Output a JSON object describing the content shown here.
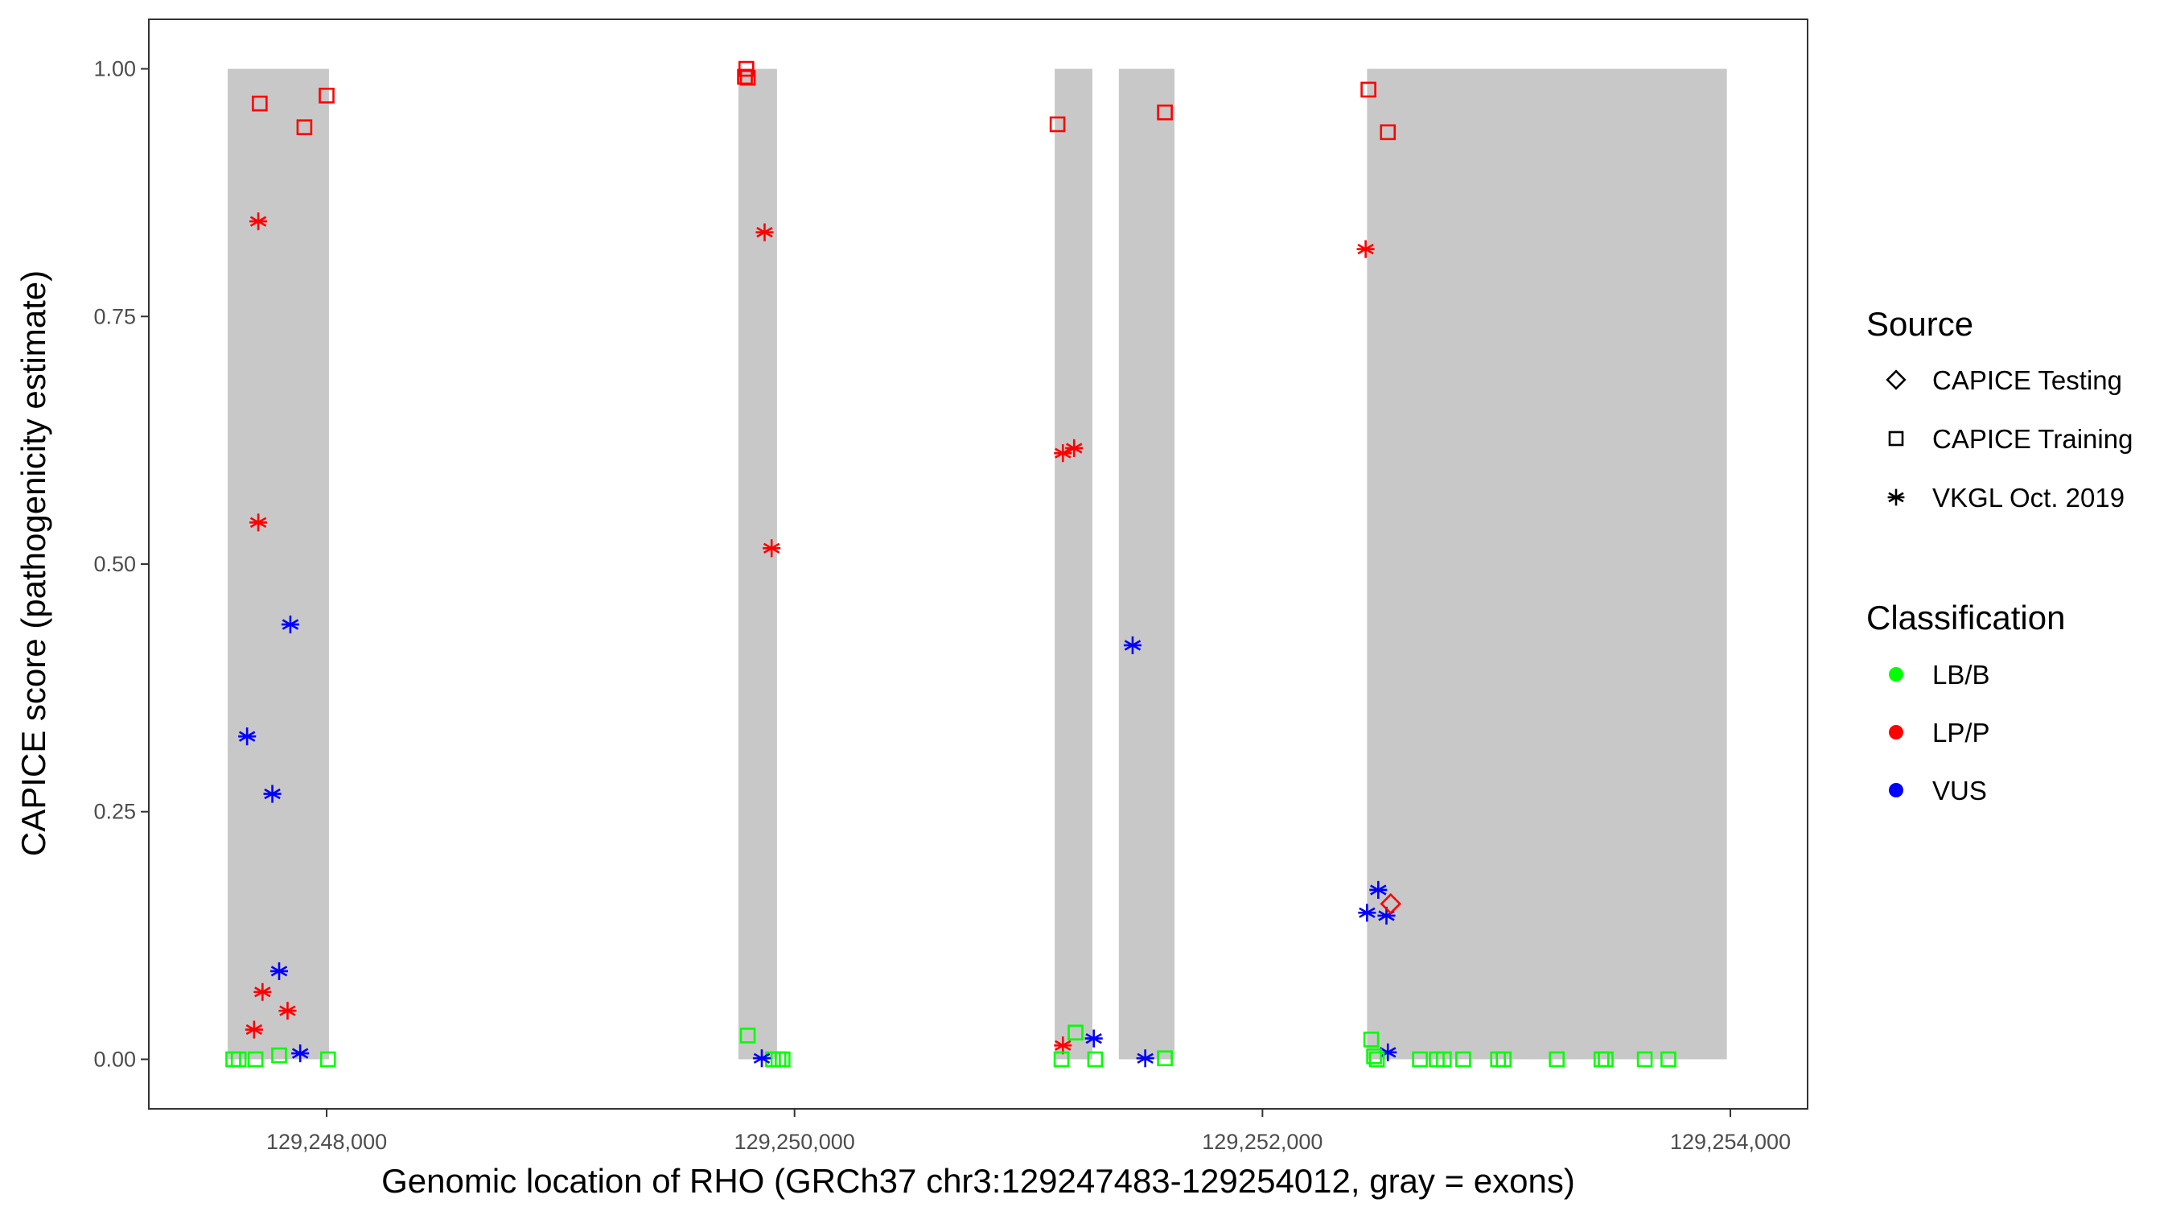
{
  "chart_data": {
    "type": "scatter",
    "xlabel": "Genomic location of RHO (GRCh37 chr3:129247483-129254012, gray = exons)",
    "ylabel": "CAPICE score (pathogenicity estimate)",
    "xlim": [
      129247240,
      129254330
    ],
    "ylim": [
      -0.05,
      1.05
    ],
    "grid": false,
    "legend_position": "right",
    "x_ticks": [
      {
        "value": 129248000,
        "label": "129,248,000"
      },
      {
        "value": 129250000,
        "label": "129,250,000"
      },
      {
        "value": 129252000,
        "label": "129,252,000"
      },
      {
        "value": 129254000,
        "label": "129,254,000"
      }
    ],
    "y_ticks": [
      {
        "value": 0,
        "label": "0.00"
      },
      {
        "value": 0.25,
        "label": "0.25"
      },
      {
        "value": 0.5,
        "label": "0.50"
      },
      {
        "value": 0.75,
        "label": "0.75"
      },
      {
        "value": 1,
        "label": "1.00"
      }
    ],
    "exons": [
      [
        129247577,
        129248010
      ],
      [
        129249760,
        129249925
      ],
      [
        129251112,
        129251273
      ],
      [
        129251386,
        129251624
      ],
      [
        129252447,
        129253985
      ]
    ],
    "exon_color": "#c8c8c8",
    "legend": {
      "source_title": "Source",
      "sources": [
        {
          "key": "test",
          "label": "CAPICE Testing",
          "shape": "diamond"
        },
        {
          "key": "train",
          "label": "CAPICE Training",
          "shape": "square"
        },
        {
          "key": "vkgl",
          "label": "VKGL Oct. 2019",
          "shape": "asterisk"
        }
      ],
      "class_title": "Classification",
      "classes": [
        {
          "key": "LB/B",
          "label": "LB/B",
          "color": "#00ff00"
        },
        {
          "key": "LP/P",
          "label": "LP/P",
          "color": "#ff0000"
        },
        {
          "key": "VUS",
          "label": "VUS",
          "color": "#0000ff"
        }
      ]
    },
    "points": [
      {
        "x": 129247714,
        "y": 0.965,
        "source": "train",
        "class": "LP/P"
      },
      {
        "x": 129247905,
        "y": 0.941,
        "source": "train",
        "class": "LP/P"
      },
      {
        "x": 129248000,
        "y": 0.973,
        "source": "train",
        "class": "LP/P"
      },
      {
        "x": 129247708,
        "y": 0.846,
        "source": "vkgl",
        "class": "LP/P"
      },
      {
        "x": 129247708,
        "y": 0.542,
        "source": "vkgl",
        "class": "LP/P"
      },
      {
        "x": 129247726,
        "y": 0.068,
        "source": "vkgl",
        "class": "LP/P"
      },
      {
        "x": 129247833,
        "y": 0.049,
        "source": "vkgl",
        "class": "LP/P"
      },
      {
        "x": 129247690,
        "y": 0.03,
        "source": "vkgl",
        "class": "LP/P"
      },
      {
        "x": 129247845,
        "y": 0.439,
        "source": "vkgl",
        "class": "VUS"
      },
      {
        "x": 129247660,
        "y": 0.326,
        "source": "vkgl",
        "class": "VUS"
      },
      {
        "x": 129247768,
        "y": 0.268,
        "source": "vkgl",
        "class": "VUS"
      },
      {
        "x": 129247797,
        "y": 0.089,
        "source": "vkgl",
        "class": "VUS"
      },
      {
        "x": 129247887,
        "y": 0.006,
        "source": "vkgl",
        "class": "VUS"
      },
      {
        "x": 129247601,
        "y": 0.0,
        "source": "train",
        "class": "LB/B"
      },
      {
        "x": 129247624,
        "y": 0.0,
        "source": "train",
        "class": "LB/B"
      },
      {
        "x": 129247696,
        "y": 0.0,
        "source": "train",
        "class": "LB/B"
      },
      {
        "x": 129247797,
        "y": 0.004,
        "source": "train",
        "class": "LB/B"
      },
      {
        "x": 129248006,
        "y": 0.0,
        "source": "train",
        "class": "LB/B"
      },
      {
        "x": 129249794,
        "y": 1.0,
        "source": "train",
        "class": "LP/P"
      },
      {
        "x": 129249788,
        "y": 0.992,
        "source": "train",
        "class": "LP/P"
      },
      {
        "x": 129249800,
        "y": 0.991,
        "source": "train",
        "class": "LP/P"
      },
      {
        "x": 129249872,
        "y": 0.835,
        "source": "vkgl",
        "class": "LP/P"
      },
      {
        "x": 129249902,
        "y": 0.516,
        "source": "vkgl",
        "class": "LP/P"
      },
      {
        "x": 129249800,
        "y": 0.024,
        "source": "train",
        "class": "LB/B"
      },
      {
        "x": 129249908,
        "y": 0.0,
        "source": "train",
        "class": "LB/B"
      },
      {
        "x": 129249931,
        "y": 0.0,
        "source": "train",
        "class": "LB/B"
      },
      {
        "x": 129249949,
        "y": 0.0,
        "source": "train",
        "class": "LB/B"
      },
      {
        "x": 129249860,
        "y": 0.001,
        "source": "vkgl",
        "class": "VUS"
      },
      {
        "x": 129251124,
        "y": 0.944,
        "source": "train",
        "class": "LP/P"
      },
      {
        "x": 129251583,
        "y": 0.956,
        "source": "train",
        "class": "LP/P"
      },
      {
        "x": 129251147,
        "y": 0.612,
        "source": "vkgl",
        "class": "LP/P"
      },
      {
        "x": 129251195,
        "y": 0.617,
        "source": "vkgl",
        "class": "LP/P"
      },
      {
        "x": 129251147,
        "y": 0.014,
        "source": "vkgl",
        "class": "LP/P"
      },
      {
        "x": 129251445,
        "y": 0.418,
        "source": "vkgl",
        "class": "VUS"
      },
      {
        "x": 129251279,
        "y": 0.021,
        "source": "vkgl",
        "class": "VUS"
      },
      {
        "x": 129251499,
        "y": 0.001,
        "source": "vkgl",
        "class": "VUS"
      },
      {
        "x": 129251201,
        "y": 0.027,
        "source": "train",
        "class": "LB/B"
      },
      {
        "x": 129251141,
        "y": 0.0,
        "source": "train",
        "class": "LB/B"
      },
      {
        "x": 129251285,
        "y": 0.0,
        "source": "train",
        "class": "LB/B"
      },
      {
        "x": 129251583,
        "y": 0.001,
        "source": "train",
        "class": "LB/B"
      },
      {
        "x": 129252453,
        "y": 0.979,
        "source": "train",
        "class": "LP/P"
      },
      {
        "x": 129252536,
        "y": 0.936,
        "source": "train",
        "class": "LP/P"
      },
      {
        "x": 129252441,
        "y": 0.818,
        "source": "vkgl",
        "class": "LP/P"
      },
      {
        "x": 129252495,
        "y": 0.171,
        "source": "vkgl",
        "class": "VUS"
      },
      {
        "x": 129252447,
        "y": 0.148,
        "source": "vkgl",
        "class": "VUS"
      },
      {
        "x": 129252530,
        "y": 0.145,
        "source": "vkgl",
        "class": "VUS"
      },
      {
        "x": 129252536,
        "y": 0.007,
        "source": "vkgl",
        "class": "VUS"
      },
      {
        "x": 129252548,
        "y": 0.157,
        "source": "test",
        "class": "LP/P"
      },
      {
        "x": 129252465,
        "y": 0.02,
        "source": "train",
        "class": "LB/B"
      },
      {
        "x": 129252477,
        "y": 0.003,
        "source": "train",
        "class": "LB/B"
      },
      {
        "x": 129252489,
        "y": 0.0,
        "source": "train",
        "class": "LB/B"
      },
      {
        "x": 129252673,
        "y": 0.0,
        "source": "train",
        "class": "LB/B"
      },
      {
        "x": 129252745,
        "y": 0.0,
        "source": "train",
        "class": "LB/B"
      },
      {
        "x": 129252775,
        "y": 0.0,
        "source": "train",
        "class": "LB/B"
      },
      {
        "x": 129252858,
        "y": 0.0,
        "source": "train",
        "class": "LB/B"
      },
      {
        "x": 129253007,
        "y": 0.0,
        "source": "train",
        "class": "LB/B"
      },
      {
        "x": 129253031,
        "y": 0.0,
        "source": "train",
        "class": "LB/B"
      },
      {
        "x": 129253258,
        "y": 0.0,
        "source": "train",
        "class": "LB/B"
      },
      {
        "x": 129253449,
        "y": 0.0,
        "source": "train",
        "class": "LB/B"
      },
      {
        "x": 129253467,
        "y": 0.0,
        "source": "train",
        "class": "LB/B"
      },
      {
        "x": 129253634,
        "y": 0.0,
        "source": "train",
        "class": "LB/B"
      },
      {
        "x": 129253735,
        "y": 0.0,
        "source": "train",
        "class": "LB/B"
      }
    ]
  }
}
